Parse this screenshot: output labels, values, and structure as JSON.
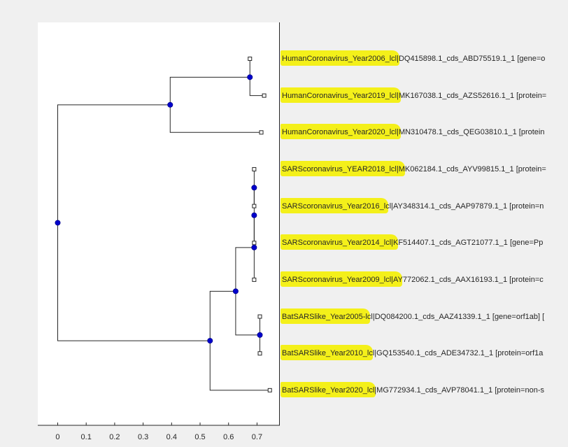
{
  "chart_data": {
    "type": "dendrogram",
    "xlim": [
      -0.07,
      0.78
    ],
    "xticks": [
      0,
      0.1,
      0.2,
      0.3,
      0.4,
      0.5,
      0.6,
      0.7
    ],
    "xtick_labels": [
      "0",
      "0.1",
      "0.2",
      "0.3",
      "0.4",
      "0.5",
      "0.6",
      "0.7"
    ],
    "grid": false,
    "highlight_color": "#f4f01a",
    "node_color": "#0000cd",
    "leaves": [
      {
        "highlighted": "HumanCoronavirus_Year2006",
        "rest": "_lcl|DQ415898.1_cds_ABD75519.1_1 [gene=o",
        "x": 0.675
      },
      {
        "highlighted": "HumanCoronavirus_Year2019",
        "rest": "_lcl|MK167038.1_cds_AZS52616.1_1 [protein=",
        "x": 0.725
      },
      {
        "highlighted": "HumanCoronavirus_Year2020",
        "rest": "_lcl|MN310478.1_cds_QEG03810.1_1 [protein",
        "x": 0.715
      },
      {
        "highlighted": "SARScoronavirus_YEAR2018",
        "rest": "_lcl|MK062184.1_cds_AYV99815.1_1 [protein=",
        "x": 0.69
      },
      {
        "highlighted": "SARScoronavirus_Year2016",
        "rest": "_lcl|AY348314.1_cds_AAP97879.1_1 [protein=n",
        "x": 0.69
      },
      {
        "highlighted": "SARScoronavirus_Year2014",
        "rest": "_lcl|KF514407.1_cds_AGT21077.1_1 [gene=Pp",
        "x": 0.69
      },
      {
        "highlighted": "SARScoronavirus_Year2009",
        "rest": "_lcl|AY772062.1_cds_AAX16193.1_1 [protein=c",
        "x": 0.69
      },
      {
        "highlighted": "BatSARSlike_Year2005",
        "rest": "-lcl|DQ084200.1_cds_AAZ41339.1_1 [gene=orf1ab] [",
        "x": 0.71
      },
      {
        "highlighted": "BatSARSlike_Year2010",
        "rest": "_lcl|GQ153540.1_cds_ADE34732.1_1 [protein=orf1a",
        "x": 0.71
      },
      {
        "highlighted": "BatSARSlike_Year2020",
        "rest": "_lcl|MG772934.1_cds_AVP78041.1_1 [protein=non-s",
        "x": 0.745
      }
    ],
    "branch_nodes": [
      {
        "x": 0.675,
        "children": [
          0,
          1
        ]
      },
      {
        "x": 0.395,
        "children": [
          "n0",
          2
        ]
      },
      {
        "x": 0.69,
        "children": [
          3,
          4
        ]
      },
      {
        "x": 0.69,
        "children": [
          "n2",
          5
        ]
      },
      {
        "x": 0.69,
        "children": [
          "n3",
          6
        ]
      },
      {
        "x": 0.71,
        "children": [
          7,
          8
        ]
      },
      {
        "x": 0.625,
        "children": [
          "n4",
          "n5"
        ]
      },
      {
        "x": 0.535,
        "children": [
          "n6",
          9
        ]
      },
      {
        "x": 0.0,
        "children": [
          "n1",
          "n7"
        ]
      }
    ]
  }
}
